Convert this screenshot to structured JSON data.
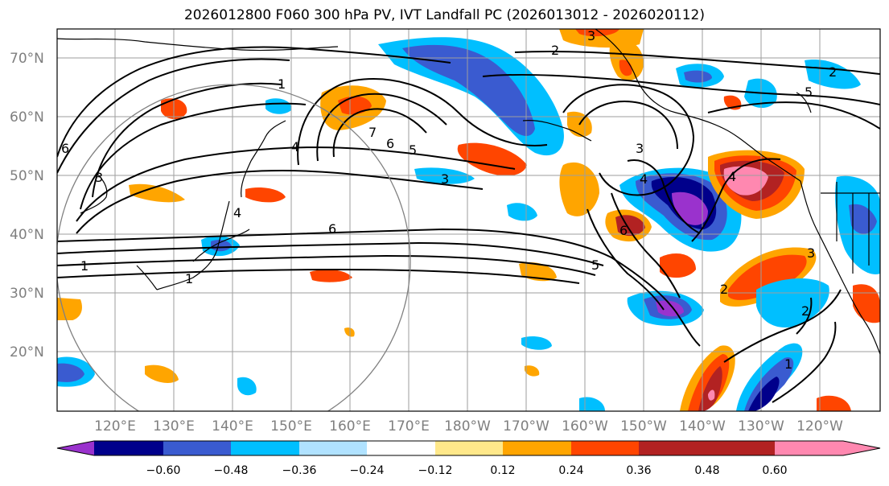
{
  "title": "2026012800 F060 300 hPa PV, IVT Landfall PC (2026013012 - 2026020112)",
  "map": {
    "lat_labels": [
      "70°N",
      "60°N",
      "50°N",
      "40°N",
      "30°N",
      "20°N"
    ],
    "lon_labels": [
      "120°E",
      "130°E",
      "140°E",
      "150°E",
      "160°E",
      "170°E",
      "180°W",
      "170°W",
      "160°W",
      "150°W",
      "140°W",
      "130°W",
      "120°W"
    ],
    "contour_labels": [
      "1",
      "2",
      "3",
      "4",
      "5",
      "6",
      "7",
      "1",
      "2",
      "3",
      "4",
      "5",
      "6",
      "4",
      "3",
      "2",
      "1",
      "4",
      "3",
      "6",
      "5",
      "6",
      "2",
      "1",
      "3"
    ]
  },
  "colorbar": {
    "ticks": [
      "−0.60",
      "−0.48",
      "−0.36",
      "−0.24",
      "−0.12",
      "0.12",
      "0.24",
      "0.36",
      "0.48",
      "0.60"
    ],
    "colors": [
      "#9a32cd",
      "#00008b",
      "#3a5bd0",
      "#00bfff",
      "#b0e2ff",
      "#ffffff",
      "#ffe88a",
      "#ffa500",
      "#ff4500",
      "#b22222",
      "#ff88b0"
    ]
  }
}
